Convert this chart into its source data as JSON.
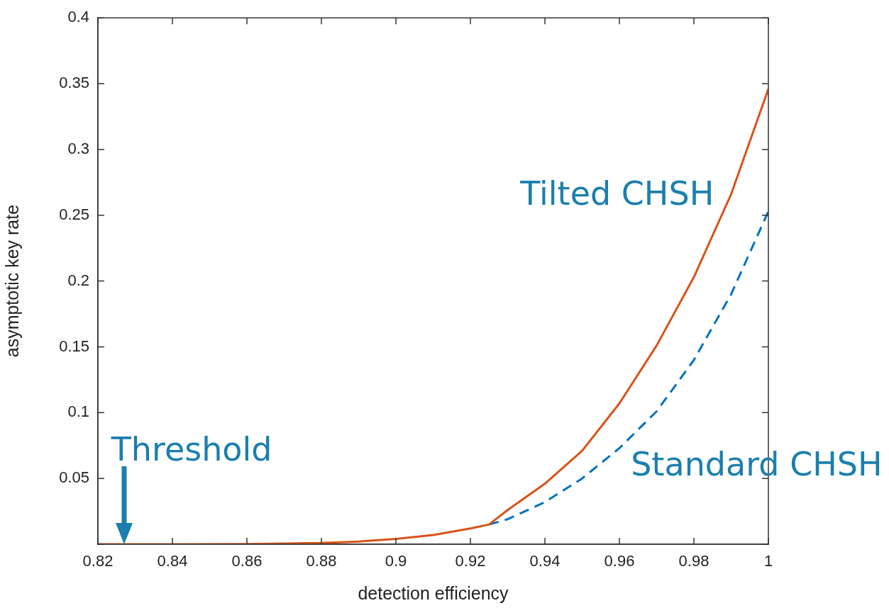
{
  "chart_data": {
    "type": "line",
    "xlabel": "detection efficiency",
    "ylabel": "asymptotic key rate",
    "xlim": [
      0.82,
      1
    ],
    "xticks": [
      0.82,
      0.84,
      0.86,
      0.88,
      0.9,
      0.92,
      0.94,
      0.96,
      0.98,
      1
    ],
    "ylim": [
      0,
      0.4
    ],
    "yticks": [
      {
        "value": 0,
        "label": null
      },
      0.05,
      0.1,
      0.15,
      0.2,
      0.25,
      0.3,
      0.35,
      0.4
    ],
    "grid": false,
    "legend": false,
    "marker": "none",
    "annotations": [
      {
        "text": "Threshold",
        "x": 0.827,
        "y": 0
      }
    ],
    "series": [
      {
        "name": "Tilted CHSH",
        "color": "#d95319",
        "line_style": "solid",
        "x": [
          0.82,
          0.84,
          0.86,
          0.87,
          0.88,
          0.89,
          0.9,
          0.91,
          0.92,
          0.925,
          0.93,
          0.94,
          0.95,
          0.96,
          0.97,
          0.98,
          0.99,
          1
        ],
        "values": [
          0,
          0,
          0.0002,
          0.0005,
          0.001,
          0.002,
          0.004,
          0.007,
          0.012,
          0.015,
          0.026,
          0.046,
          0.071,
          0.107,
          0.151,
          0.203,
          0.266,
          0.346
        ]
      },
      {
        "name": "Standard CHSH",
        "color": "#0072bd",
        "line_style": "dashed",
        "x": [
          0.925,
          0.93,
          0.94,
          0.95,
          0.96,
          0.97,
          0.98,
          0.99,
          1
        ],
        "values": [
          0.015,
          0.019,
          0.032,
          0.05,
          0.073,
          0.101,
          0.14,
          0.19,
          0.253
        ]
      }
    ]
  }
}
